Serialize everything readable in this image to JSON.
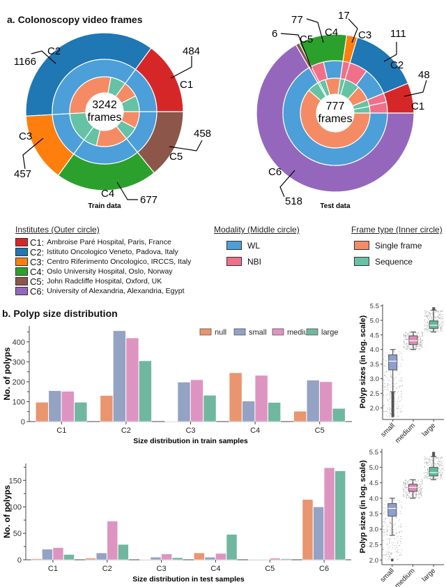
{
  "section_a": {
    "title": "a. Colonoscopy video frames",
    "train": {
      "caption": "Train data",
      "center_number": "3242",
      "center_unit": "frames"
    },
    "test": {
      "caption": "Test data",
      "center_number": "777",
      "center_unit": "frames"
    }
  },
  "legend": {
    "institutes": {
      "heading": "Institutes (Outer circle)",
      "items": [
        {
          "code": "C1:",
          "label": "Ambroise Paré Hospital, Paris, France",
          "color": "#d62728"
        },
        {
          "code": "C2:",
          "label": "Istituto Oncologico Veneto, Padova, Italy",
          "color": "#1f77b4"
        },
        {
          "code": "C3:",
          "label": "Centro Riferimento Oncologico, IRCCS, Italy",
          "color": "#ff7f0e"
        },
        {
          "code": "C4:",
          "label": "Oslo University Hospital, Oslo, Norway",
          "color": "#2ca02c"
        },
        {
          "code": "C5:",
          "label": "John Radcliffe Hospital, Oxford, UK",
          "color": "#8c564b"
        },
        {
          "code": "C6:",
          "label": "University of Alexandria, Alexandria, Egypt",
          "color": "#9467bd"
        }
      ]
    },
    "modality": {
      "heading": "Modality (Middle circle)",
      "items": [
        {
          "label": "WL",
          "color": "#4c9fd8"
        },
        {
          "label": "NBI",
          "color": "#f0708a"
        }
      ]
    },
    "frame_type": {
      "heading": "Frame type (Inner circle)",
      "items": [
        {
          "label": "Single frame",
          "color": "#f58b64"
        },
        {
          "label": "Sequence",
          "color": "#66c2a5"
        }
      ]
    }
  },
  "section_b": {
    "title": "b. Polyp size distribution"
  },
  "chart_data": [
    {
      "type": "pie",
      "name": "train-donut",
      "title": "Train data",
      "total": 3242,
      "outer": [
        {
          "label": "C1",
          "value": 484
        },
        {
          "label": "C5",
          "value": 458
        },
        {
          "label": "C4",
          "value": 677
        },
        {
          "label": "C3",
          "value": 457
        },
        {
          "label": "C2",
          "value": 1166
        }
      ],
      "outer_order_clockwise_from_3oclock_counter": [
        "C1",
        "C2",
        "C3",
        "C4",
        "C5"
      ]
    },
    {
      "type": "pie",
      "name": "test-donut",
      "title": "Test data",
      "total": 777,
      "outer": [
        {
          "label": "C1",
          "value": 48
        },
        {
          "label": "C2",
          "value": 111
        },
        {
          "label": "C3",
          "value": 17
        },
        {
          "label": "C4",
          "value": 77
        },
        {
          "label": "C5",
          "value": 6
        },
        {
          "label": "C6",
          "value": 518
        }
      ]
    },
    {
      "type": "bar",
      "name": "train-size-bars",
      "xlabel": "Size distribution in train samples",
      "ylabel": "No. of polyps",
      "categories": [
        "C1",
        "C2",
        "C3",
        "C4",
        "C5"
      ],
      "ylim": [
        0,
        480
      ],
      "yticks": [
        0,
        100,
        200,
        300,
        400
      ],
      "legend_position": "top-right",
      "series": [
        {
          "name": "null",
          "color": "#e9956f",
          "values": [
            97,
            131,
            1,
            245,
            52
          ]
        },
        {
          "name": "small",
          "color": "#94a2c4",
          "values": [
            155,
            456,
            198,
            103,
            208
          ]
        },
        {
          "name": "medium",
          "color": "#de94c0",
          "values": [
            152,
            420,
            210,
            232,
            200
          ]
        },
        {
          "name": "large",
          "color": "#70b79f",
          "values": [
            97,
            305,
            132,
            96,
            66
          ]
        }
      ]
    },
    {
      "type": "bar",
      "name": "test-size-bars",
      "xlabel": "Size distribution in test samples",
      "ylabel": "No. of polyps",
      "categories": [
        "C1",
        "C2",
        "C3",
        "C4",
        "C5",
        "C6"
      ],
      "ylim": [
        0,
        182
      ],
      "yticks": [
        0,
        50,
        100,
        150
      ],
      "series": [
        {
          "name": "null",
          "color": "#e9956f",
          "values": [
            2,
            3,
            1,
            13,
            1,
            114
          ]
        },
        {
          "name": "small",
          "color": "#94a2c4",
          "values": [
            20,
            13,
            5,
            5,
            1,
            100
          ]
        },
        {
          "name": "medium",
          "color": "#de94c0",
          "values": [
            23,
            73,
            11,
            12,
            3,
            174
          ]
        },
        {
          "name": "large",
          "color": "#70b79f",
          "values": [
            10,
            29,
            4,
            48,
            2,
            168
          ]
        }
      ]
    },
    {
      "type": "box",
      "name": "train-size-box",
      "ylabel": "Polyp sizes (in log. scale)",
      "categories": [
        "small",
        "medium",
        "large"
      ],
      "ylim": [
        1.6,
        5.55
      ],
      "yticks": [
        2.0,
        2.5,
        3.0,
        3.5,
        4.0,
        4.5,
        5.0,
        5.5
      ],
      "boxes": [
        {
          "name": "small",
          "color": "#8d9fce",
          "q1": 3.3,
          "median": 3.6,
          "q3": 3.82,
          "whislo": 2.55,
          "whishi": 4.0,
          "outlier_range": [
            1.68,
            2.55
          ]
        },
        {
          "name": "medium",
          "color": "#de8ab8",
          "q1": 4.17,
          "median": 4.3,
          "q3": 4.47,
          "whislo": 4.0,
          "whishi": 4.6
        },
        {
          "name": "large",
          "color": "#5dbb9a",
          "q1": 4.72,
          "median": 4.83,
          "q3": 4.98,
          "whislo": 4.6,
          "whishi": 5.35,
          "outlier_range": [
            5.35,
            5.45
          ]
        }
      ]
    },
    {
      "type": "box",
      "name": "test-size-box",
      "ylabel": "Polyp sizes (in log. scale)",
      "categories": [
        "small",
        "medium",
        "large"
      ],
      "ylim": [
        1.85,
        5.6
      ],
      "yticks": [
        2.0,
        2.5,
        3.0,
        3.5,
        4.0,
        4.5,
        5.0,
        5.5
      ],
      "boxes": [
        {
          "name": "small",
          "color": "#8d9fce",
          "q1": 3.42,
          "median": 3.67,
          "q3": 3.83,
          "whislo": 2.8,
          "whishi": 4.0,
          "outlier_range": [
            2.0,
            2.0
          ]
        },
        {
          "name": "medium",
          "color": "#de8ab8",
          "q1": 4.22,
          "median": 4.35,
          "q3": 4.45,
          "whislo": 4.0,
          "whishi": 4.6
        },
        {
          "name": "large",
          "color": "#5dbb9a",
          "q1": 4.72,
          "median": 4.83,
          "q3": 5.0,
          "whislo": 4.6,
          "whishi": 5.35,
          "outlier_range": [
            5.35,
            5.5
          ]
        }
      ]
    }
  ]
}
